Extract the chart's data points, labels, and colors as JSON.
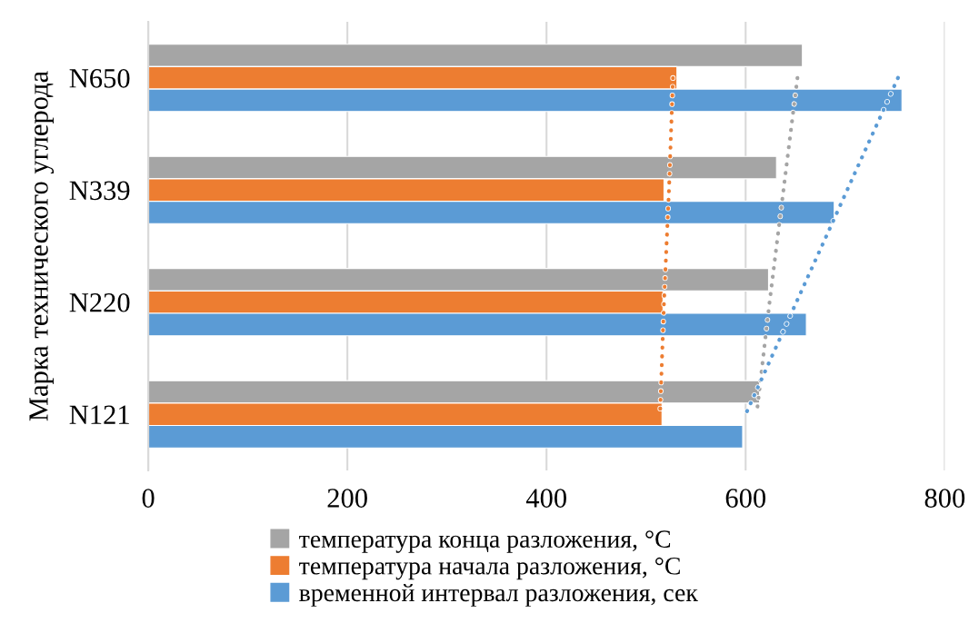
{
  "chart_data": {
    "type": "bar",
    "orientation": "horizontal",
    "ylabel": "Марка технического углерода",
    "categories": [
      "N650",
      "N339",
      "N220",
      "N121"
    ],
    "series": [
      {
        "name": "температура конца разложения, °C",
        "color": "#a5a5a5",
        "values": [
          657,
          631,
          623,
          614
        ]
      },
      {
        "name": "температура начала разложения, °C",
        "color": "#ed7d31",
        "values": [
          531,
          518,
          517,
          516
        ]
      },
      {
        "name": "временной интервал разложения, сек",
        "color": "#5b9bd5",
        "values": [
          757,
          689,
          661,
          597
        ]
      },
      {
        "type": "line",
        "line_style": "dotted",
        "color": "#a5a5a5",
        "values": [
          652,
          638,
          624,
          611
        ]
      },
      {
        "type": "line",
        "line_style": "dotted",
        "color": "#ed7d31",
        "values": [
          527,
          523,
          518,
          514
        ]
      },
      {
        "type": "line",
        "line_style": "dotted",
        "color": "#5b9bd5",
        "values": [
          753,
          702,
          651,
          600
        ]
      }
    ],
    "xlim": [
      0,
      800
    ],
    "xticks": [
      0,
      200,
      400,
      600,
      800
    ],
    "grid": "x",
    "legend": "bottom"
  }
}
